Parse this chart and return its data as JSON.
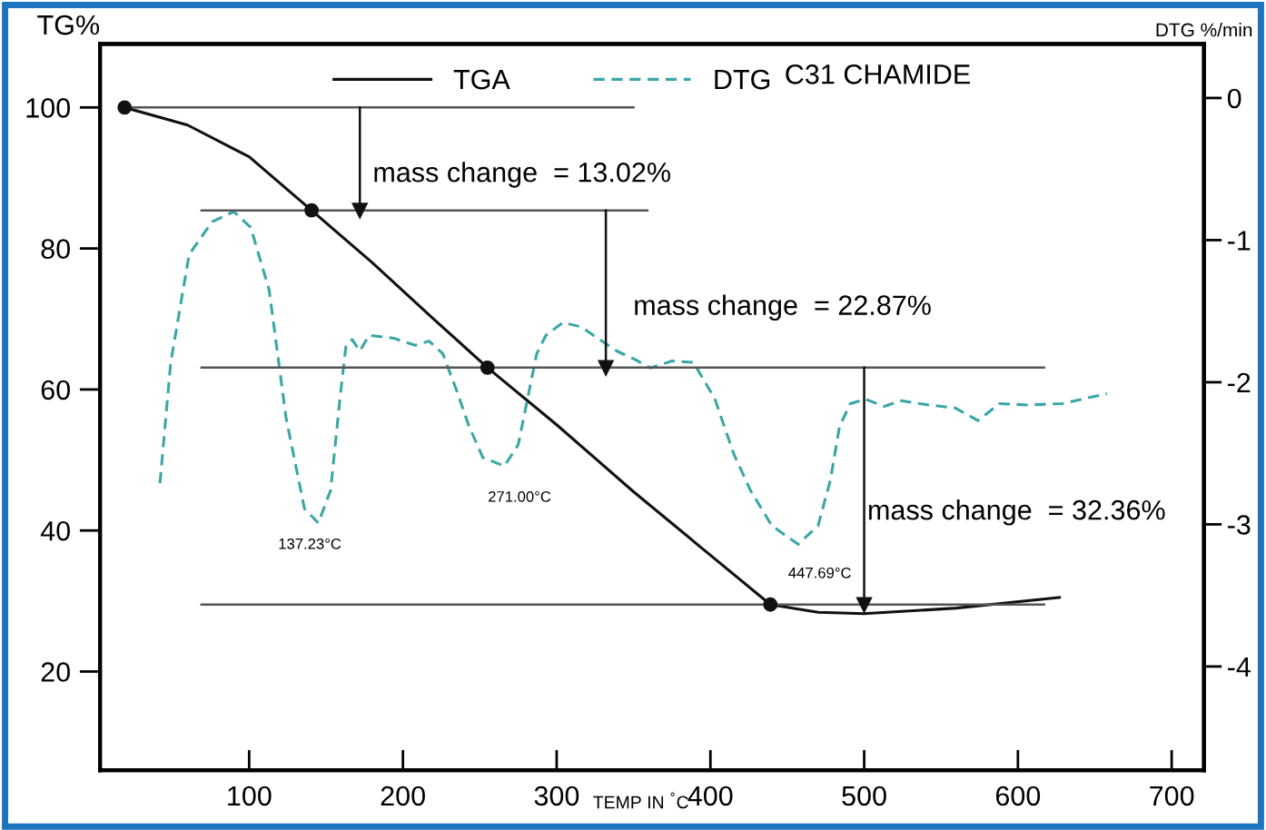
{
  "chart_data": {
    "type": "line",
    "title": "C31 CHAMIDE",
    "xlabel": "TEMP IN $^{°}$C",
    "ylabel": "TG%",
    "y2label": "DTG %/min",
    "xlim": [
      3,
      721
    ],
    "xticks": [
      100,
      200,
      300,
      400,
      500,
      600,
      700
    ],
    "ylim": [
      6,
      109
    ],
    "yticks": [
      20,
      40,
      60,
      80,
      100
    ],
    "y2lim": [
      -4.73,
      0.38
    ],
    "y2ticks": [
      0,
      -1,
      -2,
      -3,
      -4
    ],
    "legend": "top",
    "grid": false,
    "series": [
      {
        "name": "TGA",
        "color": "#111111",
        "line_style": "solid",
        "x": [
          19,
          60,
          100,
          140.6,
          180,
          220,
          255,
          300,
          350,
          400,
          439,
          470,
          500,
          560,
          627
        ],
        "values": [
          100,
          97.5,
          93,
          85.4,
          78,
          70,
          63.1,
          55,
          45.5,
          36.5,
          29.5,
          28.4,
          28.2,
          29,
          30.5
        ]
      },
      {
        "name": "DTG",
        "color": "#3aa6a6",
        "line_style": "dashed",
        "axis": "y2",
        "x": [
          42,
          49,
          61,
          76,
          90,
          101,
          113,
          124,
          136,
          145,
          153,
          159,
          163,
          167,
          172,
          178,
          194,
          208,
          217,
          226,
          235,
          243,
          252,
          266,
          275,
          281,
          287,
          293,
          304,
          316,
          328,
          339,
          351,
          361,
          375,
          389,
          403,
          415,
          426,
          440,
          457,
          470,
          478,
          484,
          491,
          501,
          513,
          524,
          542,
          559,
          574,
          588,
          606,
          629,
          658
        ],
        "values": [
          -2.71,
          -1.86,
          -1.1,
          -0.87,
          -0.8,
          -0.91,
          -1.35,
          -2.25,
          -2.89,
          -2.99,
          -2.76,
          -2.12,
          -1.74,
          -1.7,
          -1.78,
          -1.67,
          -1.69,
          -1.74,
          -1.71,
          -1.8,
          -2.06,
          -2.31,
          -2.53,
          -2.59,
          -2.44,
          -2.12,
          -1.8,
          -1.67,
          -1.58,
          -1.61,
          -1.7,
          -1.78,
          -1.84,
          -1.9,
          -1.85,
          -1.86,
          -2.12,
          -2.5,
          -2.76,
          -3.01,
          -3.14,
          -3.01,
          -2.69,
          -2.31,
          -2.15,
          -2.12,
          -2.17,
          -2.13,
          -2.16,
          -2.18,
          -2.27,
          -2.15,
          -2.16,
          -2.15,
          -2.08
        ]
      },
      {
        "type": "scatter",
        "color": "#111111",
        "marker": "circle",
        "x": [
          19,
          140.6,
          255,
          439
        ],
        "values": [
          100,
          85.4,
          63.1,
          29.5
        ]
      },
      {
        "color": "#555555",
        "line_style": "solid",
        "x": [
          19,
          350
        ],
        "values": [
          100,
          100
        ]
      },
      {
        "color": "#555555",
        "line_style": "solid",
        "x": [
          69,
          359
        ],
        "values": [
          85.4,
          85.4
        ]
      },
      {
        "color": "#555555",
        "line_style": "solid",
        "x": [
          69,
          617
        ],
        "values": [
          63.1,
          63.1
        ]
      },
      {
        "color": "#555555",
        "line_style": "solid",
        "x": [
          69,
          617
        ],
        "values": [
          29.5,
          29.5
        ]
      },
      {
        "color": "#111111",
        "line_style": "solid",
        "marker": "triangle",
        "x": [
          172,
          172
        ],
        "values": [
          100,
          85.4
        ]
      },
      {
        "color": "#111111",
        "line_style": "solid",
        "marker": "triangle",
        "x": [
          332,
          332
        ],
        "values": [
          85.4,
          63.1
        ]
      },
      {
        "color": "#111111",
        "line_style": "solid",
        "marker": "triangle",
        "x": [
          500,
          500
        ],
        "values": [
          63.1,
          29.5
        ]
      }
    ],
    "annotations": [
      "mass change  = 13.02%",
      "mass change  = 22.87%",
      "mass change  = 32.36%",
      "137.23°C",
      "271.00°C",
      "447.69°C"
    ]
  }
}
